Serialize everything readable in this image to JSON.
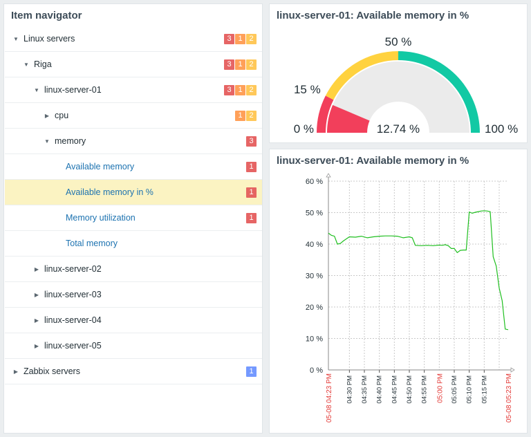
{
  "navigator": {
    "title": "Item navigator",
    "rows": [
      {
        "label": "Linux servers",
        "expanded": true,
        "link": false,
        "badges": [
          "3",
          "1",
          "2"
        ]
      },
      {
        "label": "Riga",
        "expanded": true,
        "link": false,
        "badges": [
          "3",
          "1",
          "2"
        ]
      },
      {
        "label": "linux-server-01",
        "expanded": true,
        "link": false,
        "badges": [
          "3",
          "1",
          "2"
        ]
      },
      {
        "label": "cpu",
        "expanded": false,
        "link": false,
        "badges": [
          "1",
          "2"
        ]
      },
      {
        "label": "memory",
        "expanded": true,
        "link": false,
        "badges": [
          "3"
        ]
      },
      {
        "label": "Available memory",
        "link": true,
        "badges": [
          "1"
        ]
      },
      {
        "label": "Available memory in %",
        "link": true,
        "selected": true,
        "badges": [
          "1"
        ]
      },
      {
        "label": "Memory utilization",
        "link": true,
        "badges": [
          "1"
        ]
      },
      {
        "label": "Total memory",
        "link": true,
        "badges": []
      },
      {
        "label": "linux-server-02",
        "expanded": false,
        "link": false,
        "badges": []
      },
      {
        "label": "linux-server-03",
        "expanded": false,
        "link": false,
        "badges": []
      },
      {
        "label": "linux-server-04",
        "expanded": false,
        "link": false,
        "badges": []
      },
      {
        "label": "linux-server-05",
        "expanded": false,
        "link": false,
        "badges": []
      },
      {
        "label": "Zabbix servers",
        "expanded": false,
        "link": false,
        "badges": [
          "1"
        ]
      }
    ],
    "icons": {
      "expanded": "triangle-down-icon",
      "collapsed": "triangle-right-icon"
    }
  },
  "gauge": {
    "title": "linux-server-01: Available memory in %",
    "value": 12.74,
    "value_label": "12.74 %",
    "min": 0,
    "max": 100,
    "min_label": "0 %",
    "max_label": "100 %",
    "thresholds": [
      {
        "value": 15,
        "label": "15 %",
        "color": "#f23f5b"
      },
      {
        "value": 50,
        "label": "50 %",
        "color": "#ffd23f"
      },
      {
        "value": 100,
        "color": "#12c9a4"
      }
    ],
    "value_color": "#f23f5b",
    "empty_color": "#ebebeb"
  },
  "graph": {
    "title": "linux-server-01: Available memory in %",
    "chart_data": {
      "type": "line",
      "series": [
        {
          "color": "#1fbf1f",
          "x": [
            "04:23",
            "04:24",
            "04:25",
            "04:26",
            "04:27",
            "04:28",
            "04:30",
            "04:32",
            "04:34",
            "04:36",
            "04:38",
            "04:40",
            "04:42",
            "04:44",
            "04:46",
            "04:48",
            "04:50",
            "04:51",
            "04:52",
            "04:54",
            "04:56",
            "04:58",
            "05:00",
            "05:01",
            "05:02",
            "05:03",
            "05:04",
            "05:05",
            "05:06",
            "05:07",
            "05:08",
            "05:09",
            "05:10",
            "05:11",
            "05:12",
            "05:13",
            "05:14",
            "05:15",
            "05:16",
            "05:17",
            "05:18",
            "05:19",
            "05:20",
            "05:21",
            "05:22",
            "05:23"
          ],
          "y": [
            43.5,
            42.8,
            42.5,
            40.0,
            40.2,
            41.0,
            42.3,
            42.2,
            42.5,
            42.0,
            42.3,
            42.5,
            42.6,
            42.6,
            42.5,
            42.0,
            42.3,
            42.0,
            39.6,
            39.5,
            39.6,
            39.5,
            39.7,
            39.6,
            39.8,
            39.5,
            38.6,
            38.6,
            37.3,
            38.0,
            38.1,
            38.1,
            50.2,
            49.8,
            50.1,
            50.3,
            50.5,
            50.6,
            50.5,
            50.3,
            36.0,
            33.0,
            26.0,
            22.0,
            13.0,
            12.8
          ]
        }
      ],
      "ylim": [
        0,
        60
      ],
      "y_ticks": [
        "0 %",
        "10 %",
        "20 %",
        "30 %",
        "40 %",
        "50 %",
        "60 %"
      ],
      "x_ticks_black": [
        "04:30 PM",
        "04:35 PM",
        "04:40 PM",
        "04:45 PM",
        "04:50 PM",
        "04:55 PM",
        "05:05 PM",
        "05:10 PM",
        "05:15 PM"
      ],
      "x_ticks_red": [
        "05-08 04:23 PM",
        "05:00 PM",
        "05-08 05:23 PM"
      ],
      "grid": true
    }
  }
}
